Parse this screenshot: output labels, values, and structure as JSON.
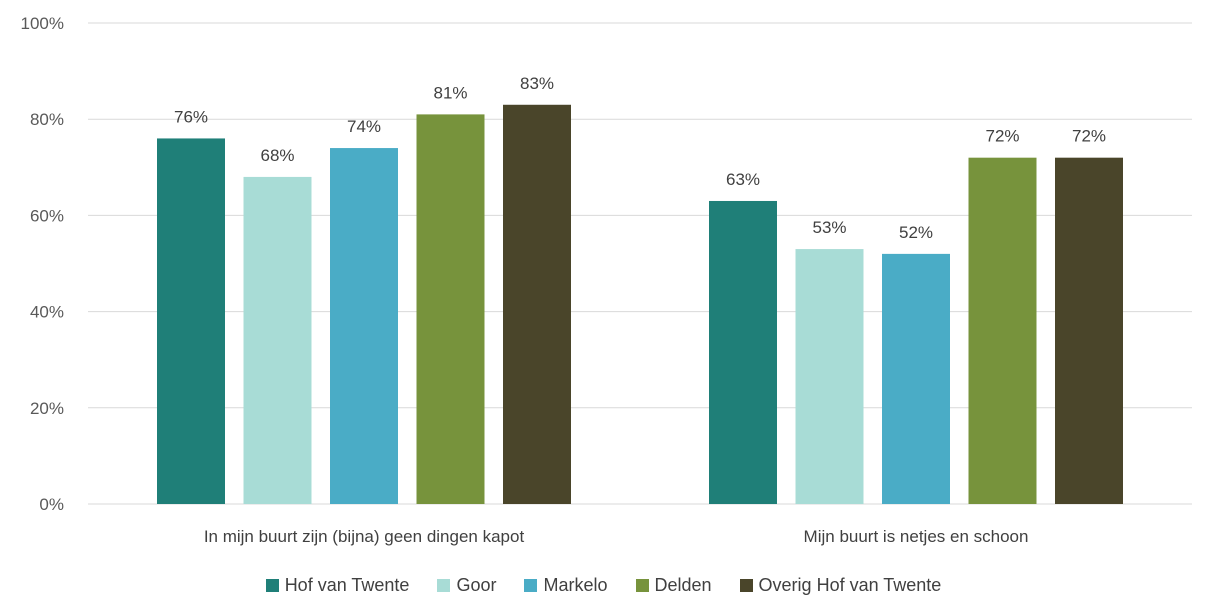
{
  "chart_data": {
    "type": "bar",
    "categories": [
      "In mijn buurt zijn (bijna) geen dingen kapot",
      "Mijn buurt is netjes en schoon"
    ],
    "series": [
      {
        "name": "Hof van Twente",
        "values": [
          76,
          63
        ],
        "labels": [
          "76%",
          "63%"
        ],
        "color": "#1f7f78"
      },
      {
        "name": "Goor",
        "values": [
          68,
          53
        ],
        "labels": [
          "68%",
          "53%"
        ],
        "color": "#a8dcd6"
      },
      {
        "name": "Markelo",
        "values": [
          74,
          52
        ],
        "labels": [
          "74%",
          "52%"
        ],
        "color": "#4aacc6"
      },
      {
        "name": "Delden",
        "values": [
          81,
          72
        ],
        "labels": [
          "81%",
          "72%"
        ],
        "color": "#77933c"
      },
      {
        "name": "Overig Hof van Twente",
        "values": [
          83,
          72
        ],
        "labels": [
          "83%",
          "72%"
        ],
        "color": "#4a452a"
      }
    ],
    "y_ticks": [
      "0%",
      "20%",
      "40%",
      "60%",
      "80%",
      "100%"
    ],
    "ylim": [
      0,
      100
    ],
    "grid": true,
    "legend_position": "bottom"
  }
}
